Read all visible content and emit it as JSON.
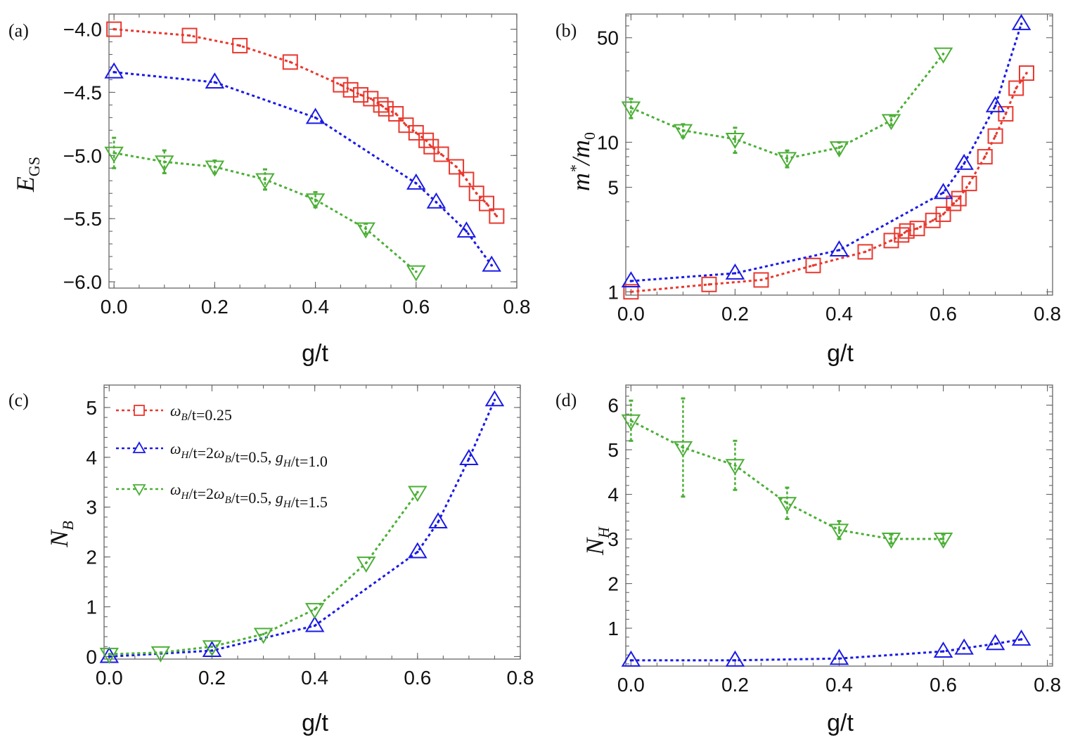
{
  "colors": {
    "square": "#e8382f",
    "up": "#1a1ae6",
    "down": "#4caf37",
    "axis": "#666666"
  },
  "legend": [
    {
      "series": "square",
      "label": "ωB/t=0.25"
    },
    {
      "series": "up",
      "label": "ωH/t=2ωB/t=0.5, gH/t=1.0"
    },
    {
      "series": "down",
      "label": "ωH/t=2ωB/t=0.5, gH/t=1.5"
    }
  ],
  "chart_data": [
    {
      "id": "a",
      "panel_label": "(a)",
      "type": "line",
      "xlabel": "g/t",
      "ylabel": "E_GS",
      "xlim": [
        -0.01,
        0.8
      ],
      "ylim": [
        -6.05,
        -3.88
      ],
      "xticks": [
        0.0,
        0.2,
        0.4,
        0.6,
        0.8
      ],
      "xtick_labels": [
        "0.0",
        "0.2",
        "0.4",
        "0.6",
        "0.8"
      ],
      "yticks": [
        -6.0,
        -5.5,
        -5.0,
        -4.5,
        -4.0
      ],
      "ytick_labels": [
        "−6.0",
        "−5.5",
        "−5.0",
        "−4.5",
        "−4.0"
      ],
      "series": [
        {
          "name": "square",
          "marker": "square",
          "x": [
            0.0,
            0.15,
            0.25,
            0.35,
            0.45,
            0.47,
            0.49,
            0.51,
            0.53,
            0.54,
            0.56,
            0.58,
            0.6,
            0.62,
            0.63,
            0.65,
            0.68,
            0.7,
            0.72,
            0.74,
            0.76
          ],
          "y": [
            -4.0,
            -4.05,
            -4.13,
            -4.26,
            -4.44,
            -4.48,
            -4.52,
            -4.55,
            -4.6,
            -4.63,
            -4.67,
            -4.76,
            -4.82,
            -4.88,
            -4.93,
            -4.99,
            -5.09,
            -5.19,
            -5.3,
            -5.38,
            -5.48
          ]
        },
        {
          "name": "up",
          "marker": "up",
          "x": [
            0.0,
            0.2,
            0.4,
            0.6,
            0.64,
            0.7,
            0.75
          ],
          "y": [
            -4.34,
            -4.42,
            -4.7,
            -5.22,
            -5.37,
            -5.6,
            -5.87
          ]
        },
        {
          "name": "down",
          "marker": "down",
          "x": [
            0.0,
            0.1,
            0.2,
            0.3,
            0.4,
            0.5,
            0.6
          ],
          "y": [
            -4.98,
            -5.05,
            -5.09,
            -5.19,
            -5.35,
            -5.58,
            -5.92
          ],
          "err": [
            0.12,
            0.09,
            0.05,
            0.08,
            0.06,
            0.04,
            0.0
          ]
        }
      ]
    },
    {
      "id": "b",
      "panel_label": "(b)",
      "type": "line",
      "yscale": "log",
      "xlabel": "g/t",
      "ylabel": "m*/m0",
      "xlim": [
        -0.01,
        0.81
      ],
      "ylim": [
        0.95,
        72
      ],
      "xticks": [
        0.0,
        0.2,
        0.4,
        0.6,
        0.8
      ],
      "xtick_labels": [
        "0.0",
        "0.2",
        "0.4",
        "0.6",
        "0.8"
      ],
      "yticks": [
        1,
        5,
        10,
        50
      ],
      "ytick_labels": [
        "1",
        "5",
        "10",
        "50"
      ],
      "yminor": [
        2,
        3,
        4,
        6,
        7,
        8,
        9,
        20,
        30,
        40,
        60,
        70
      ],
      "series": [
        {
          "name": "square",
          "marker": "square",
          "x": [
            0.0,
            0.15,
            0.25,
            0.35,
            0.45,
            0.5,
            0.52,
            0.53,
            0.55,
            0.58,
            0.6,
            0.62,
            0.63,
            0.65,
            0.68,
            0.7,
            0.72,
            0.74,
            0.76
          ],
          "y": [
            1.0,
            1.12,
            1.2,
            1.5,
            1.85,
            2.2,
            2.4,
            2.55,
            2.65,
            3.0,
            3.3,
            3.9,
            4.2,
            5.3,
            8.0,
            11.0,
            15.5,
            23.0,
            29.0
          ]
        },
        {
          "name": "up",
          "marker": "up",
          "x": [
            0.0,
            0.2,
            0.4,
            0.6,
            0.64,
            0.7,
            0.75
          ],
          "y": [
            1.18,
            1.33,
            1.9,
            4.6,
            7.2,
            17.5,
            62.0
          ]
        },
        {
          "name": "down",
          "marker": "down",
          "x": [
            0.0,
            0.1,
            0.2,
            0.3,
            0.4,
            0.5,
            0.6
          ],
          "y": [
            17.0,
            12.0,
            10.5,
            7.8,
            9.2,
            14.0,
            39.0
          ],
          "err_low": [
            2.5,
            1.2,
            2.0,
            1.0,
            0.8,
            1.0,
            0
          ],
          "err_high": [
            2.5,
            1.2,
            2.0,
            1.0,
            0.8,
            1.0,
            0
          ]
        }
      ]
    },
    {
      "id": "c",
      "panel_label": "(c)",
      "type": "line",
      "xlabel": "g/t",
      "ylabel": "N_B",
      "xlim": [
        -0.01,
        0.8
      ],
      "ylim": [
        -0.05,
        5.45
      ],
      "xticks": [
        0.0,
        0.2,
        0.4,
        0.6,
        0.8
      ],
      "xtick_labels": [
        "0.0",
        "0.2",
        "0.4",
        "0.6",
        "0.8"
      ],
      "yticks": [
        0,
        1,
        2,
        3,
        4,
        5
      ],
      "ytick_labels": [
        "0",
        "1",
        "2",
        "3",
        "4",
        "5"
      ],
      "series": [
        {
          "name": "up",
          "marker": "up",
          "x": [
            0.0,
            0.2,
            0.4,
            0.6,
            0.64,
            0.7,
            0.75
          ],
          "y": [
            0.0,
            0.12,
            0.62,
            2.1,
            2.7,
            3.97,
            5.15
          ]
        },
        {
          "name": "down",
          "marker": "down",
          "x": [
            0.0,
            0.1,
            0.2,
            0.3,
            0.4,
            0.5,
            0.6
          ],
          "y": [
            0.05,
            0.08,
            0.2,
            0.45,
            0.95,
            1.88,
            3.3
          ]
        }
      ]
    },
    {
      "id": "d",
      "panel_label": "(d)",
      "type": "line",
      "xlabel": "g/t",
      "ylabel": "N_H",
      "xlim": [
        -0.01,
        0.81
      ],
      "ylim": [
        0.15,
        6.45
      ],
      "xticks": [
        0.0,
        0.2,
        0.4,
        0.6,
        0.8
      ],
      "xtick_labels": [
        "0.0",
        "0.2",
        "0.4",
        "0.6",
        "0.8"
      ],
      "yticks": [
        1,
        2,
        3,
        4,
        5,
        6
      ],
      "ytick_labels": [
        "1",
        "2",
        "3",
        "4",
        "5",
        "6"
      ],
      "series": [
        {
          "name": "up",
          "marker": "up",
          "x": [
            0.0,
            0.2,
            0.4,
            0.6,
            0.64,
            0.7,
            0.75
          ],
          "y": [
            0.28,
            0.28,
            0.32,
            0.48,
            0.55,
            0.65,
            0.75
          ]
        },
        {
          "name": "down",
          "marker": "down",
          "x": [
            0.0,
            0.1,
            0.2,
            0.3,
            0.4,
            0.5,
            0.6
          ],
          "y": [
            5.65,
            5.05,
            4.65,
            3.8,
            3.2,
            3.0,
            3.0
          ],
          "err_low": [
            0.45,
            1.1,
            0.55,
            0.35,
            0.2,
            0.1,
            0.1
          ],
          "err_high": [
            0.45,
            1.1,
            0.55,
            0.35,
            0.2,
            0.1,
            0.1
          ]
        }
      ]
    }
  ]
}
